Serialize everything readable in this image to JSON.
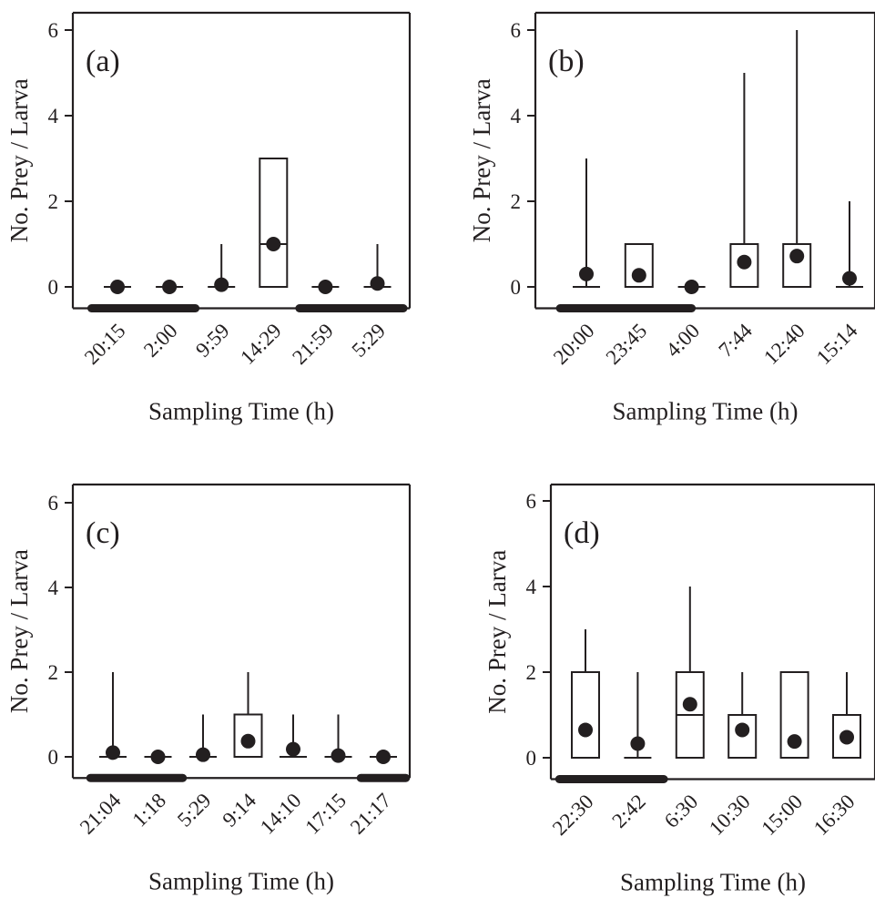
{
  "figure": {
    "ylabel": "No. Prey / Larva",
    "xlabel": "Sampling Time (h)",
    "colors": {
      "ink": "#231f20",
      "background": "#ffffff"
    }
  },
  "chart_data": [
    {
      "type": "boxplot",
      "panel": "(a)",
      "xlabel": "Sampling Time (h)",
      "ylabel": "No. Prey / Larva",
      "ylim": [
        -0.5,
        6.3
      ],
      "yticks": [
        0,
        2,
        4,
        6
      ],
      "categories": [
        "20:15",
        "2:00",
        "9:59",
        "14:29",
        "21:59",
        "5:29"
      ],
      "boxes": [
        {
          "q1": 0,
          "median": 0,
          "q3": 0,
          "whisker_high": 0,
          "mean": 0
        },
        {
          "q1": 0,
          "median": 0,
          "q3": 0,
          "whisker_high": 0,
          "mean": 0
        },
        {
          "q1": 0,
          "median": 0,
          "q3": 0,
          "whisker_high": 1,
          "mean": 0.05
        },
        {
          "q1": 0,
          "median": 1,
          "q3": 3,
          "whisker_high": 3,
          "mean": 1.0
        },
        {
          "q1": 0,
          "median": 0,
          "q3": 0,
          "whisker_high": 0,
          "mean": 0
        },
        {
          "q1": 0,
          "median": 0,
          "q3": 0,
          "whisker_high": 1,
          "mean": 0.08
        }
      ],
      "dark_bars": [
        [
          -0.5,
          1.5
        ],
        [
          3.5,
          5.5
        ]
      ]
    },
    {
      "type": "boxplot",
      "panel": "(b)",
      "xlabel": "Sampling Time (h)",
      "ylabel": "No. Prey / Larva",
      "ylim": [
        -0.5,
        6.3
      ],
      "yticks": [
        0,
        2,
        4,
        6
      ],
      "categories": [
        "20:00",
        "23:45",
        "4:00",
        "7:44",
        "12:40",
        "15:14"
      ],
      "boxes": [
        {
          "q1": 0,
          "median": 0,
          "q3": 0,
          "whisker_high": 3,
          "mean": 0.3
        },
        {
          "q1": 0,
          "median": 0,
          "q3": 1,
          "whisker_high": 1,
          "mean": 0.27
        },
        {
          "q1": 0,
          "median": 0,
          "q3": 0,
          "whisker_high": 0,
          "mean": 0
        },
        {
          "q1": 0,
          "median": 0,
          "q3": 1,
          "whisker_high": 5,
          "mean": 0.58
        },
        {
          "q1": 0,
          "median": 0,
          "q3": 1,
          "whisker_high": 6,
          "mean": 0.72
        },
        {
          "q1": 0,
          "median": 0,
          "q3": 0,
          "whisker_high": 2,
          "mean": 0.2
        }
      ],
      "dark_bars": [
        [
          -0.5,
          2.0
        ]
      ]
    },
    {
      "type": "boxplot",
      "panel": "(c)",
      "xlabel": "Sampling Time (h)",
      "ylabel": "No. Prey / Larva",
      "ylim": [
        -0.5,
        6.3
      ],
      "yticks": [
        0,
        2,
        4,
        6
      ],
      "categories": [
        "21:04",
        "1:18",
        "5:29",
        "9:14",
        "14:10",
        "17:15",
        "21:17"
      ],
      "boxes": [
        {
          "q1": 0,
          "median": 0,
          "q3": 0,
          "whisker_high": 2,
          "mean": 0.1
        },
        {
          "q1": 0,
          "median": 0,
          "q3": 0,
          "whisker_high": 0,
          "mean": 0
        },
        {
          "q1": 0,
          "median": 0,
          "q3": 0,
          "whisker_high": 1,
          "mean": 0.05
        },
        {
          "q1": 0,
          "median": 0,
          "q3": 1,
          "whisker_high": 2,
          "mean": 0.37
        },
        {
          "q1": 0,
          "median": 0,
          "q3": 0,
          "whisker_high": 1,
          "mean": 0.18
        },
        {
          "q1": 0,
          "median": 0,
          "q3": 0,
          "whisker_high": 1,
          "mean": 0.03
        },
        {
          "q1": 0,
          "median": 0,
          "q3": 0,
          "whisker_high": 0,
          "mean": 0
        }
      ],
      "dark_bars": [
        [
          -0.5,
          1.55
        ],
        [
          5.5,
          6.5
        ]
      ]
    },
    {
      "type": "boxplot",
      "panel": "(d)",
      "xlabel": "Sampling Time (h)",
      "ylabel": "No. Prey / Larva",
      "ylim": [
        -0.5,
        6.3
      ],
      "yticks": [
        0,
        2,
        4,
        6
      ],
      "categories": [
        "22:30",
        "2:42",
        "6:30",
        "10:30",
        "15:00",
        "16:30"
      ],
      "boxes": [
        {
          "q1": 0,
          "median": 0,
          "q3": 2,
          "whisker_high": 3,
          "mean": 0.65
        },
        {
          "q1": 0,
          "median": 0,
          "q3": 0,
          "whisker_high": 2,
          "mean": 0.33
        },
        {
          "q1": 0,
          "median": 1,
          "q3": 2,
          "whisker_high": 4,
          "mean": 1.25
        },
        {
          "q1": 0,
          "median": 0,
          "q3": 1,
          "whisker_high": 2,
          "mean": 0.65
        },
        {
          "q1": 0,
          "median": 0,
          "q3": 2,
          "whisker_high": 2,
          "mean": 0.38
        },
        {
          "q1": 0,
          "median": 0,
          "q3": 1,
          "whisker_high": 2,
          "mean": 0.48
        }
      ],
      "dark_bars": [
        [
          -0.5,
          1.5
        ]
      ]
    }
  ]
}
